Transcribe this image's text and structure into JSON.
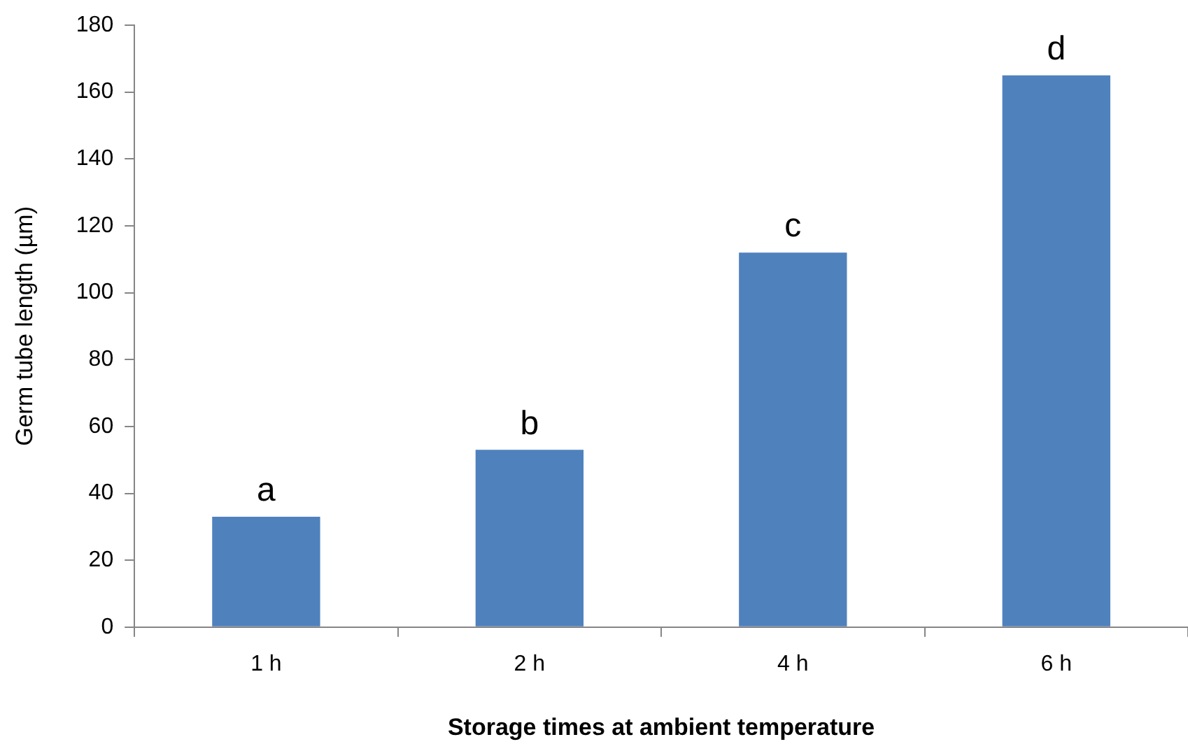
{
  "chart_data": {
    "type": "bar",
    "xlabel": "Storage times at ambient temperature",
    "ylabel": "Germ tube length (µm)",
    "categories": [
      "1 h",
      "2 h",
      "4 h",
      "6 h"
    ],
    "values": [
      33,
      53,
      112,
      165
    ],
    "color": "#4f81bd",
    "ylim": [
      0,
      180
    ],
    "yticks": [
      0,
      20,
      40,
      60,
      80,
      100,
      120,
      140,
      160,
      180
    ],
    "grid": false,
    "annotations": [
      {
        "text": "a",
        "x": "1 h",
        "y": 33
      },
      {
        "text": "b",
        "x": "2 h",
        "y": 53
      },
      {
        "text": "c",
        "x": "4 h",
        "y": 112
      },
      {
        "text": "d",
        "x": "6 h",
        "y": 165
      }
    ]
  }
}
